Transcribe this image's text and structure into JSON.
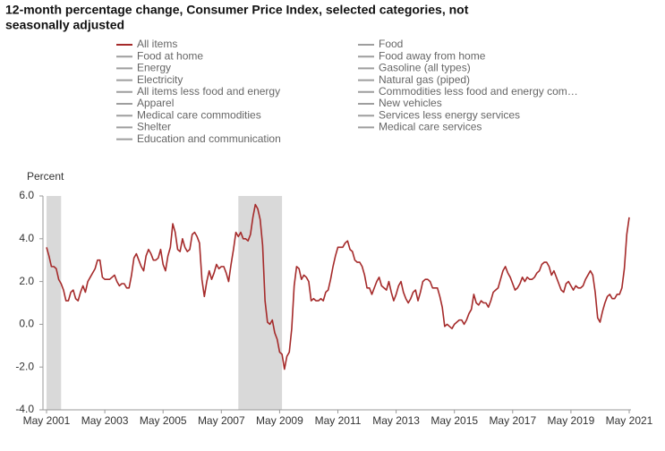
{
  "chart_data": {
    "type": "line",
    "title": "12-month percentage change, Consumer Price Index, selected categories, not seasonally adjusted",
    "y_label": "Percent",
    "x_start": "2001-05",
    "series": [
      {
        "name": "All items",
        "color": "#a52a2a",
        "values": [
          3.6,
          3.2,
          2.7,
          2.7,
          2.6,
          2.1,
          1.9,
          1.6,
          1.1,
          1.1,
          1.5,
          1.6,
          1.2,
          1.1,
          1.5,
          1.8,
          1.5,
          2.0,
          2.2,
          2.4,
          2.6,
          3.0,
          3.0,
          2.2,
          2.1,
          2.1,
          2.1,
          2.2,
          2.3,
          2.0,
          1.8,
          1.9,
          1.9,
          1.7,
          1.7,
          2.3,
          3.1,
          3.3,
          3.0,
          2.7,
          2.5,
          3.2,
          3.5,
          3.3,
          3.0,
          3.0,
          3.1,
          3.5,
          2.8,
          2.5,
          3.2,
          3.6,
          4.7,
          4.3,
          3.5,
          3.4,
          4.0,
          3.6,
          3.4,
          3.5,
          4.2,
          4.3,
          4.1,
          3.8,
          2.1,
          1.3,
          2.0,
          2.5,
          2.1,
          2.4,
          2.8,
          2.6,
          2.7,
          2.7,
          2.4,
          2.0,
          2.8,
          3.5,
          4.3,
          4.1,
          4.3,
          4.0,
          4.0,
          3.9,
          4.2,
          5.0,
          5.6,
          5.4,
          4.9,
          3.7,
          1.1,
          0.1,
          0.0,
          0.2,
          -0.4,
          -0.7,
          -1.3,
          -1.4,
          -2.1,
          -1.5,
          -1.3,
          -0.2,
          1.8,
          2.7,
          2.6,
          2.1,
          2.3,
          2.2,
          2.0,
          1.1,
          1.2,
          1.1,
          1.1,
          1.2,
          1.1,
          1.5,
          1.6,
          2.1,
          2.7,
          3.2,
          3.6,
          3.6,
          3.6,
          3.8,
          3.9,
          3.5,
          3.4,
          3.0,
          2.9,
          2.9,
          2.7,
          2.3,
          1.7,
          1.7,
          1.4,
          1.7,
          2.0,
          2.2,
          1.8,
          1.7,
          1.6,
          2.0,
          1.5,
          1.1,
          1.4,
          1.8,
          2.0,
          1.5,
          1.2,
          1.0,
          1.2,
          1.5,
          1.6,
          1.1,
          1.5,
          2.0,
          2.1,
          2.1,
          2.0,
          1.7,
          1.7,
          1.7,
          1.3,
          0.8,
          -0.1,
          0.0,
          -0.1,
          -0.2,
          0.0,
          0.1,
          0.2,
          0.2,
          0.0,
          0.2,
          0.5,
          0.7,
          1.4,
          1.0,
          0.9,
          1.1,
          1.0,
          1.0,
          0.8,
          1.1,
          1.5,
          1.6,
          1.7,
          2.1,
          2.5,
          2.7,
          2.4,
          2.2,
          1.9,
          1.6,
          1.7,
          1.9,
          2.2,
          2.0,
          2.2,
          2.1,
          2.1,
          2.2,
          2.4,
          2.5,
          2.8,
          2.9,
          2.9,
          2.7,
          2.3,
          2.5,
          2.2,
          1.9,
          1.6,
          1.5,
          1.9,
          2.0,
          1.8,
          1.6,
          1.8,
          1.7,
          1.7,
          1.8,
          2.1,
          2.3,
          2.5,
          2.3,
          1.5,
          0.3,
          0.1,
          0.6,
          1.0,
          1.3,
          1.4,
          1.2,
          1.2,
          1.4,
          1.4,
          1.7,
          2.6,
          4.2,
          5.0
        ]
      }
    ],
    "inactive_series": [
      "Food at home",
      "Energy",
      "Electricity",
      "All items less food and energy",
      "Apparel",
      "Medical care commodities",
      "Shelter",
      "Education and communication",
      "Food",
      "Food away from home",
      "Gasoline (all types)",
      "Natural gas (piped)",
      "Commodities less food and energy com…",
      "New vehicles",
      "Services less energy services",
      "Medical care services"
    ],
    "inactive_color": "#9e9e9e",
    "shaded_ranges": [
      [
        "2001-05",
        "2001-11"
      ],
      [
        "2007-12",
        "2009-06"
      ]
    ],
    "shade_color": "#d9d9d9",
    "xlim": [
      "2001-05",
      "2021-05"
    ],
    "xticks": [
      {
        "value": "2001-05",
        "label": "May 2001"
      },
      {
        "value": "2003-05",
        "label": "May 2003"
      },
      {
        "value": "2005-05",
        "label": "May 2005"
      },
      {
        "value": "2007-05",
        "label": "May 2007"
      },
      {
        "value": "2009-05",
        "label": "May 2009"
      },
      {
        "value": "2011-05",
        "label": "May 2011"
      },
      {
        "value": "2013-05",
        "label": "May 2013"
      },
      {
        "value": "2015-05",
        "label": "May 2015"
      },
      {
        "value": "2017-05",
        "label": "May 2017"
      },
      {
        "value": "2019-05",
        "label": "May 2019"
      },
      {
        "value": "2021-05",
        "label": "May 2021"
      }
    ],
    "ylim": [
      -4,
      6
    ],
    "yticks": [
      {
        "value": -4,
        "label": "-4.0"
      },
      {
        "value": -2,
        "label": "-2.0"
      },
      {
        "value": 0,
        "label": "0.0"
      },
      {
        "value": 2,
        "label": "2.0"
      },
      {
        "value": 4,
        "label": "4.0"
      },
      {
        "value": 6,
        "label": "6.0"
      }
    ]
  }
}
